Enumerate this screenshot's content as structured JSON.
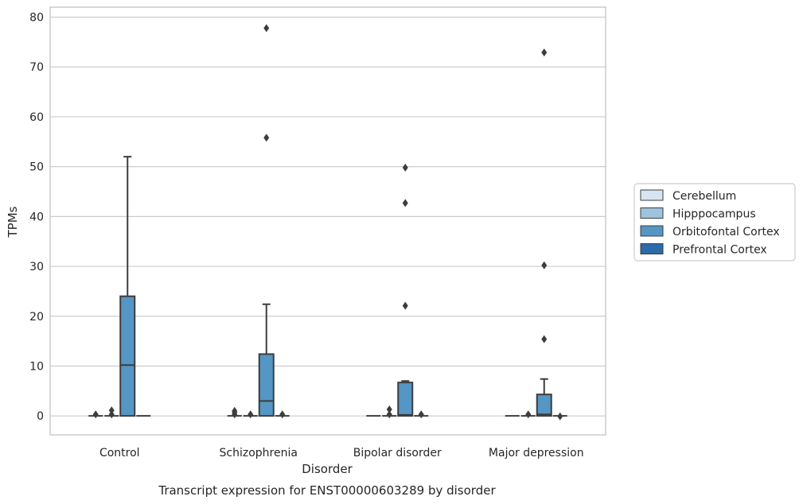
{
  "caption": "Transcript expression for ENST00000603289 by disorder",
  "chart_data": {
    "type": "box",
    "xlabel": "Disorder",
    "ylabel": "TPMs",
    "ylim": [
      -3.8,
      82
    ],
    "yticks": [
      0,
      10,
      20,
      30,
      40,
      50,
      60,
      70,
      80
    ],
    "grid": "horizontal",
    "legend_position": "right",
    "categories": [
      "Control",
      "Schizophrenia",
      "Bipolar disorder",
      "Major depression"
    ],
    "series": [
      {
        "name": "Cerebellum",
        "color": "#d7e5f2",
        "boxes": [
          {
            "q1": 0,
            "median": 0,
            "q3": 0,
            "whisker_low": 0,
            "whisker_high": 0,
            "outliers": [
              0.3
            ]
          },
          {
            "q1": 0,
            "median": 0,
            "q3": 0,
            "whisker_low": 0,
            "whisker_high": 0,
            "outliers": [
              0.3,
              0.7,
              1.0
            ]
          },
          {
            "q1": 0,
            "median": 0,
            "q3": 0,
            "whisker_low": 0,
            "whisker_high": 0,
            "outliers": []
          },
          {
            "q1": 0,
            "median": 0,
            "q3": 0,
            "whisker_low": 0,
            "whisker_high": 0,
            "outliers": []
          }
        ]
      },
      {
        "name": "Hipppocampus",
        "color": "#9dc3dd",
        "boxes": [
          {
            "q1": 0,
            "median": 0,
            "q3": 0,
            "whisker_low": 0,
            "whisker_high": 0,
            "outliers": [
              0.3,
              1.1
            ]
          },
          {
            "q1": 0,
            "median": 0,
            "q3": 0,
            "whisker_low": 0,
            "whisker_high": 0,
            "outliers": [
              0.3
            ]
          },
          {
            "q1": 0,
            "median": 0,
            "q3": 0,
            "whisker_low": 0,
            "whisker_high": 0,
            "outliers": [
              1.3,
              0.3
            ]
          },
          {
            "q1": 0,
            "median": 0,
            "q3": 0,
            "whisker_low": 0,
            "whisker_high": 0,
            "outliers": [
              0.3
            ]
          }
        ]
      },
      {
        "name": "Orbitofontal Cortex",
        "color": "#5596c5",
        "boxes": [
          {
            "q1": 0,
            "median": 10.2,
            "q3": 24.0,
            "whisker_low": 0,
            "whisker_high": 52.0,
            "outliers": []
          },
          {
            "q1": 0,
            "median": 3.0,
            "q3": 12.4,
            "whisker_low": 0,
            "whisker_high": 22.4,
            "outliers": [
              55.8,
              77.8
            ]
          },
          {
            "q1": 0,
            "median": 0.2,
            "q3": 6.7,
            "whisker_low": 0,
            "whisker_high": 7.0,
            "outliers": [
              22.1,
              42.7,
              49.8
            ]
          },
          {
            "q1": 0,
            "median": 0.3,
            "q3": 4.3,
            "whisker_low": 0,
            "whisker_high": 7.4,
            "outliers": [
              15.4,
              30.2,
              72.9
            ]
          }
        ]
      },
      {
        "name": "Prefrontal Cortex",
        "color": "#2c6ba8",
        "boxes": [
          {
            "q1": 0,
            "median": 0,
            "q3": 0,
            "whisker_low": 0,
            "whisker_high": 0,
            "outliers": []
          },
          {
            "q1": 0,
            "median": 0,
            "q3": 0,
            "whisker_low": 0,
            "whisker_high": 0,
            "outliers": [
              0.3
            ]
          },
          {
            "q1": 0,
            "median": 0,
            "q3": 0,
            "whisker_low": 0,
            "whisker_high": 0,
            "outliers": [
              0.3
            ]
          },
          {
            "q1": 0,
            "median": 0,
            "q3": 0,
            "whisker_low": 0,
            "whisker_high": 0,
            "outliers": [
              -0.1
            ]
          }
        ]
      }
    ]
  }
}
